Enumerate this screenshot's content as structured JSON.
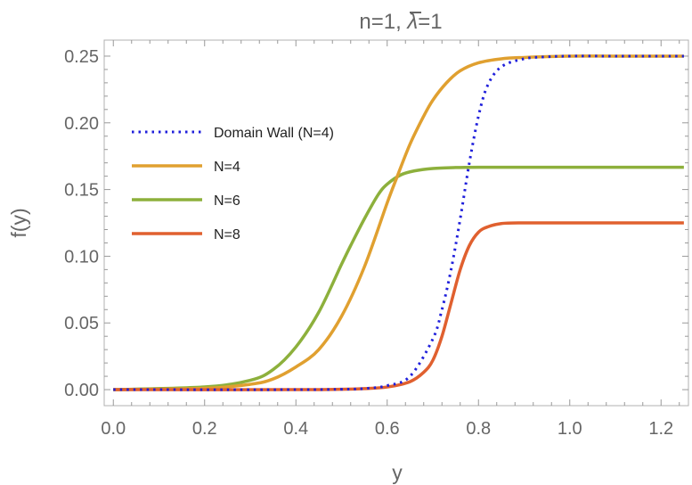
{
  "chart_data": {
    "type": "line",
    "title": {
      "prefix": "n=1, ",
      "lambda_symbol": "λ",
      "suffix": "=1"
    },
    "xlabel": "y",
    "ylabel": "f(y)",
    "xlim": [
      -0.02,
      1.26
    ],
    "ylim": [
      -0.012,
      0.262
    ],
    "xticks": [
      0.0,
      0.2,
      0.4,
      0.6,
      0.8,
      1.0,
      1.2
    ],
    "xtick_labels": [
      "0.0",
      "0.2",
      "0.4",
      "0.6",
      "0.8",
      "1.0",
      "1.2"
    ],
    "yticks": [
      0.0,
      0.05,
      0.1,
      0.15,
      0.2,
      0.25
    ],
    "ytick_labels": [
      "0.00",
      "0.05",
      "0.10",
      "0.15",
      "0.20",
      "0.25"
    ],
    "grid": false,
    "legend_position": "top-left",
    "series": [
      {
        "name": "Domain Wall (N=4)",
        "color": "#1f1fdb",
        "style": "dotted",
        "x": [
          0.0,
          0.4,
          0.5,
          0.55,
          0.6,
          0.65,
          0.7,
          0.72,
          0.74,
          0.76,
          0.78,
          0.8,
          0.82,
          0.85,
          0.9,
          0.95,
          1.0,
          1.1,
          1.25
        ],
        "y": [
          0.0,
          0.0,
          0.0003,
          0.0008,
          0.003,
          0.01,
          0.038,
          0.06,
          0.09,
          0.128,
          0.17,
          0.205,
          0.228,
          0.242,
          0.248,
          0.2495,
          0.25,
          0.25,
          0.25
        ]
      },
      {
        "name": "N=4",
        "color": "#e0a030",
        "style": "solid",
        "x": [
          0.0,
          0.2,
          0.3,
          0.35,
          0.4,
          0.45,
          0.5,
          0.55,
          0.6,
          0.62,
          0.65,
          0.68,
          0.7,
          0.73,
          0.76,
          0.8,
          0.85,
          0.9,
          1.0,
          1.1,
          1.25
        ],
        "y": [
          0.0,
          0.001,
          0.004,
          0.008,
          0.017,
          0.03,
          0.055,
          0.092,
          0.14,
          0.158,
          0.184,
          0.205,
          0.217,
          0.23,
          0.239,
          0.245,
          0.248,
          0.249,
          0.25,
          0.25,
          0.25
        ]
      },
      {
        "name": "N=6",
        "color": "#8db03c",
        "style": "solid",
        "x": [
          0.0,
          0.2,
          0.3,
          0.35,
          0.4,
          0.45,
          0.5,
          0.52,
          0.55,
          0.58,
          0.6,
          0.63,
          0.66,
          0.7,
          0.75,
          0.8,
          0.9,
          1.0,
          1.25
        ],
        "y": [
          0.0,
          0.002,
          0.007,
          0.015,
          0.032,
          0.058,
          0.094,
          0.108,
          0.128,
          0.146,
          0.154,
          0.161,
          0.164,
          0.1658,
          0.1665,
          0.1667,
          0.1667,
          0.1667,
          0.1667
        ],
        "note_type": "line"
      },
      {
        "name": "N=8",
        "color": "#e0602f",
        "style": "solid",
        "x": [
          0.0,
          0.4,
          0.5,
          0.55,
          0.6,
          0.65,
          0.68,
          0.7,
          0.72,
          0.74,
          0.76,
          0.78,
          0.8,
          0.82,
          0.85,
          0.9,
          1.0,
          1.25
        ],
        "y": [
          0.0,
          0.0,
          0.0003,
          0.0008,
          0.002,
          0.006,
          0.013,
          0.022,
          0.04,
          0.065,
          0.09,
          0.108,
          0.118,
          0.122,
          0.1245,
          0.125,
          0.125,
          0.125
        ]
      }
    ]
  }
}
